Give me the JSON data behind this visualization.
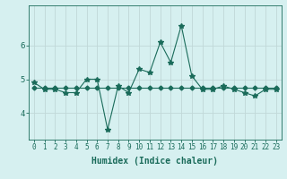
{
  "xlabel": "Humidex (Indice chaleur)",
  "x": [
    0,
    1,
    2,
    3,
    4,
    5,
    6,
    7,
    8,
    9,
    10,
    11,
    12,
    13,
    14,
    15,
    16,
    17,
    18,
    19,
    20,
    21,
    22,
    23
  ],
  "y_line": [
    4.9,
    4.7,
    4.7,
    4.6,
    4.6,
    5.0,
    5.0,
    3.5,
    4.8,
    4.6,
    5.3,
    5.2,
    6.1,
    5.5,
    6.6,
    5.1,
    4.7,
    4.7,
    4.8,
    4.7,
    4.6,
    4.5,
    4.7,
    4.7
  ],
  "y_flat": [
    4.75,
    4.75,
    4.75,
    4.75,
    4.75,
    4.75,
    4.75,
    4.75,
    4.75,
    4.75,
    4.75,
    4.75,
    4.75,
    4.75,
    4.75,
    4.75,
    4.75,
    4.75,
    4.75,
    4.75,
    4.75,
    4.75,
    4.75,
    4.75
  ],
  "line_color": "#1a6b5a",
  "bg_color": "#d6f0f0",
  "grid_color": "#c0d8d8",
  "ylim": [
    3.2,
    7.2
  ],
  "yticks": [
    4,
    5,
    6
  ],
  "xticks": [
    0,
    1,
    2,
    3,
    4,
    5,
    6,
    7,
    8,
    9,
    10,
    11,
    12,
    13,
    14,
    15,
    16,
    17,
    18,
    19,
    20,
    21,
    22,
    23
  ],
  "tick_fontsize": 5.5,
  "xlabel_fontsize": 7.0,
  "ylabel_fontsize": 7.0,
  "marker_size_star": 4,
  "marker_size_diamond": 2.5,
  "linewidth": 0.8
}
